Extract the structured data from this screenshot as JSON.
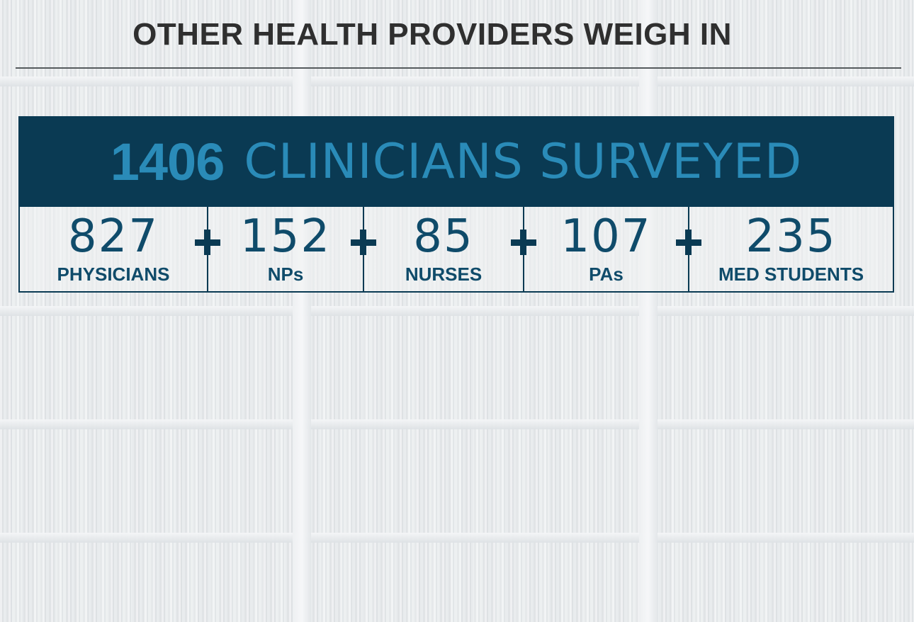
{
  "header": {
    "title": "OTHER HEALTH PROVIDERS WEIGH IN"
  },
  "banner": {
    "total": "1406",
    "label": "CLINICIANS SURVEYED"
  },
  "groups": [
    {
      "count": "827",
      "label": "PHYSICIANS"
    },
    {
      "count": "152",
      "label": "NPs"
    },
    {
      "count": "85",
      "label": "NURSES"
    },
    {
      "count": "107",
      "label": "PAs"
    },
    {
      "count": "235",
      "label": "MED STUDENTS"
    }
  ],
  "operator_icon": "plus-icon",
  "colors": {
    "banner_bg": "#0a3a53",
    "banner_text": "#2a8bb8",
    "stat_text": "#0f4b6a",
    "title_text": "#2f2f2f"
  }
}
